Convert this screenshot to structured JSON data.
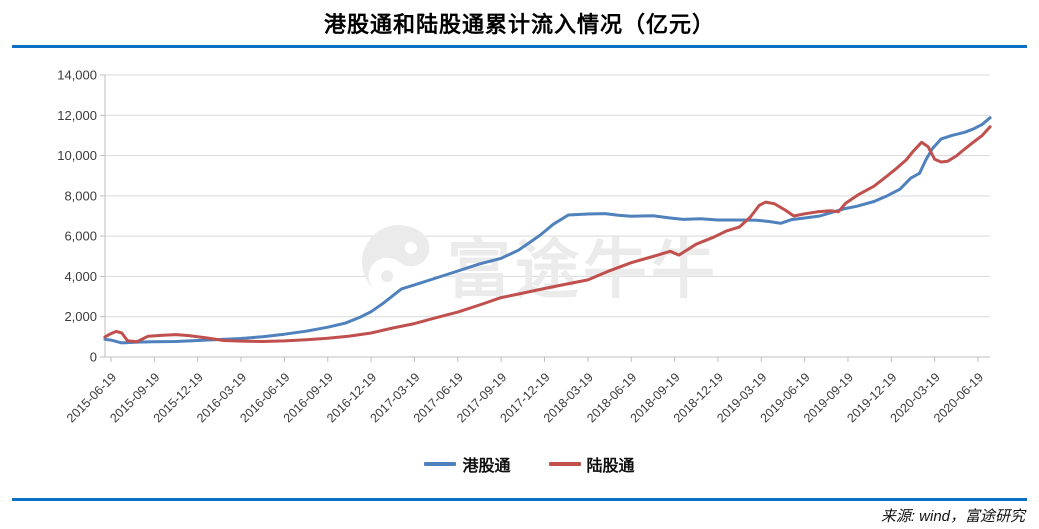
{
  "title": "港股通和陆股通累计流入情况（亿元）",
  "source": "来源: wind，富途研究",
  "watermark": {
    "text": "富途牛牛",
    "logo": "futu-bull-logo"
  },
  "colors": {
    "rule_blue": "#0a70c4",
    "grid": "#d9d9d9",
    "axis": "#bfbfbf",
    "tick_label": "#3a3a3a",
    "watermark": "#ebebeb",
    "series_hgt": "#4f81bd",
    "series_lgt": "#c0504d"
  },
  "legend": [
    {
      "label": "港股通",
      "color": "#4f81bd"
    },
    {
      "label": "陆股通",
      "color": "#c0504d"
    }
  ],
  "chart_data": {
    "type": "line",
    "title": "港股通和陆股通累计流入情况（亿元）",
    "xlabel": "",
    "ylabel": "",
    "ylim": [
      0,
      14000
    ],
    "grid": true,
    "legend_position": "bottom",
    "y_ticks": [
      0,
      2000,
      4000,
      6000,
      8000,
      10000,
      12000,
      14000
    ],
    "y_tick_labels": [
      "0",
      "2,000",
      "4,000",
      "6,000",
      "8,000",
      "10,000",
      "12,000",
      "14,000"
    ],
    "categories": [
      "2015-06-19",
      "2015-09-19",
      "2015-12-19",
      "2016-03-19",
      "2016-06-19",
      "2016-09-19",
      "2016-12-19",
      "2017-03-19",
      "2017-06-19",
      "2017-09-19",
      "2017-12-19",
      "2018-03-19",
      "2018-06-19",
      "2018-09-19",
      "2018-12-19",
      "2019-03-19",
      "2019-06-19",
      "2019-09-19",
      "2019-12-19",
      "2020-03-19",
      "2020-06-19"
    ],
    "x_unit": "quarter-index (0 = 2015-06-19, 20 = 2020-06-19)",
    "series": [
      {
        "name": "港股通",
        "color": "#4f81bd",
        "points": [
          [
            -0.14,
            880
          ],
          [
            0,
            840
          ],
          [
            0.25,
            700
          ],
          [
            0.6,
            740
          ],
          [
            1,
            760
          ],
          [
            1.5,
            770
          ],
          [
            2,
            820
          ],
          [
            2.5,
            870
          ],
          [
            3,
            920
          ],
          [
            3.5,
            1010
          ],
          [
            4,
            1130
          ],
          [
            4.5,
            1280
          ],
          [
            5,
            1480
          ],
          [
            5.4,
            1680
          ],
          [
            5.75,
            1980
          ],
          [
            6,
            2250
          ],
          [
            6.3,
            2700
          ],
          [
            6.7,
            3380
          ],
          [
            7,
            3580
          ],
          [
            7.5,
            3920
          ],
          [
            8,
            4270
          ],
          [
            8.5,
            4620
          ],
          [
            9,
            4900
          ],
          [
            9.4,
            5300
          ],
          [
            9.9,
            6050
          ],
          [
            10.2,
            6590
          ],
          [
            10.55,
            7050
          ],
          [
            11,
            7100
          ],
          [
            11.4,
            7120
          ],
          [
            11.7,
            7040
          ],
          [
            12,
            6990
          ],
          [
            12.5,
            7010
          ],
          [
            12.9,
            6900
          ],
          [
            13.2,
            6830
          ],
          [
            13.6,
            6860
          ],
          [
            14,
            6800
          ],
          [
            14.5,
            6800
          ],
          [
            14.9,
            6790
          ],
          [
            15.2,
            6720
          ],
          [
            15.45,
            6640
          ],
          [
            15.7,
            6820
          ],
          [
            16,
            6900
          ],
          [
            16.35,
            7000
          ],
          [
            16.9,
            7350
          ],
          [
            17.2,
            7480
          ],
          [
            17.6,
            7720
          ],
          [
            17.9,
            8000
          ],
          [
            18.2,
            8330
          ],
          [
            18.45,
            8880
          ],
          [
            18.65,
            9120
          ],
          [
            18.8,
            9800
          ],
          [
            18.95,
            10350
          ],
          [
            19.15,
            10830
          ],
          [
            19.4,
            11000
          ],
          [
            19.7,
            11160
          ],
          [
            19.9,
            11330
          ],
          [
            20.1,
            11550
          ],
          [
            20.28,
            11880
          ]
        ]
      },
      {
        "name": "陆股通",
        "color": "#c0504d",
        "points": [
          [
            -0.14,
            1000
          ],
          [
            0,
            1160
          ],
          [
            0.12,
            1270
          ],
          [
            0.25,
            1190
          ],
          [
            0.38,
            810
          ],
          [
            0.6,
            760
          ],
          [
            0.85,
            1030
          ],
          [
            1.2,
            1080
          ],
          [
            1.5,
            1110
          ],
          [
            1.8,
            1060
          ],
          [
            2.2,
            950
          ],
          [
            2.6,
            820
          ],
          [
            3,
            790
          ],
          [
            3.5,
            770
          ],
          [
            4,
            800
          ],
          [
            4.5,
            860
          ],
          [
            5,
            930
          ],
          [
            5.5,
            1040
          ],
          [
            6,
            1190
          ],
          [
            6.5,
            1440
          ],
          [
            7,
            1660
          ],
          [
            7.5,
            1950
          ],
          [
            8,
            2230
          ],
          [
            8.5,
            2580
          ],
          [
            9,
            2950
          ],
          [
            9.5,
            3170
          ],
          [
            10,
            3400
          ],
          [
            10.5,
            3620
          ],
          [
            11,
            3830
          ],
          [
            11.5,
            4280
          ],
          [
            12,
            4680
          ],
          [
            12.5,
            4990
          ],
          [
            12.9,
            5250
          ],
          [
            13.1,
            5060
          ],
          [
            13.5,
            5600
          ],
          [
            13.9,
            5950
          ],
          [
            14.2,
            6260
          ],
          [
            14.5,
            6460
          ],
          [
            14.75,
            6950
          ],
          [
            14.95,
            7520
          ],
          [
            15.1,
            7690
          ],
          [
            15.3,
            7610
          ],
          [
            15.55,
            7300
          ],
          [
            15.75,
            7000
          ],
          [
            16,
            7110
          ],
          [
            16.3,
            7210
          ],
          [
            16.6,
            7260
          ],
          [
            16.78,
            7210
          ],
          [
            16.95,
            7640
          ],
          [
            17.25,
            8070
          ],
          [
            17.6,
            8480
          ],
          [
            17.9,
            8980
          ],
          [
            18.15,
            9420
          ],
          [
            18.35,
            9800
          ],
          [
            18.5,
            10200
          ],
          [
            18.7,
            10660
          ],
          [
            18.85,
            10440
          ],
          [
            19,
            9820
          ],
          [
            19.15,
            9680
          ],
          [
            19.3,
            9720
          ],
          [
            19.5,
            9980
          ],
          [
            19.65,
            10250
          ],
          [
            19.9,
            10680
          ],
          [
            20.1,
            11000
          ],
          [
            20.28,
            11430
          ]
        ]
      }
    ]
  }
}
